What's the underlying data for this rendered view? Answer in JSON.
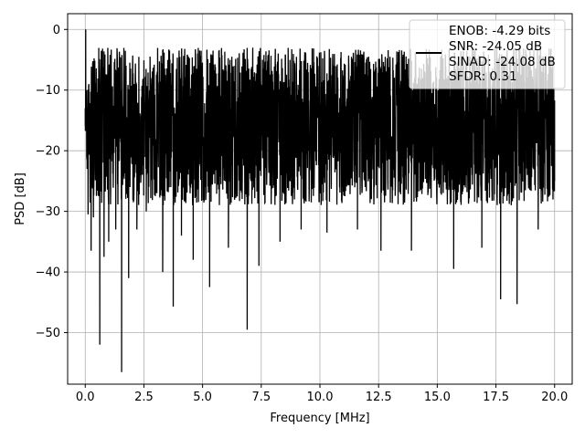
{
  "chart_data": {
    "type": "line",
    "title": "",
    "xlabel": "Frequency [MHz]",
    "ylabel": "PSD [dB]",
    "xlim": [
      -0.75,
      20.75
    ],
    "ylim": [
      -58.5,
      2.6
    ],
    "xticks": [
      0.0,
      2.5,
      5.0,
      7.5,
      10.0,
      12.5,
      15.0,
      17.5,
      20.0
    ],
    "xtick_labels": [
      "0.0",
      "2.5",
      "5.0",
      "7.5",
      "10.0",
      "12.5",
      "15.0",
      "17.5",
      "20.0"
    ],
    "yticks": [
      0,
      -10,
      -20,
      -30,
      -40,
      -50
    ],
    "ytick_labels": [
      "0",
      "−10",
      "−20",
      "−30",
      "−40",
      "−50"
    ],
    "grid": true,
    "series": [
      {
        "line_color": "#000000",
        "points": [
          [
            0.0,
            -13.0
          ],
          [
            0.02,
            0.0
          ],
          [
            0.05,
            -12.5
          ],
          [
            0.08,
            -23.0
          ],
          [
            0.12,
            -30.5
          ],
          [
            0.25,
            -36.5
          ],
          [
            0.35,
            -31.0
          ],
          [
            0.62,
            -52.0
          ],
          [
            0.8,
            -37.5
          ],
          [
            1.0,
            -35.0
          ],
          [
            1.3,
            -33.0
          ],
          [
            1.55,
            -56.5
          ],
          [
            1.85,
            -41.0
          ],
          [
            2.2,
            -33.0
          ],
          [
            2.6,
            -30.0
          ],
          [
            3.3,
            -40.0
          ],
          [
            3.75,
            -45.7
          ],
          [
            4.1,
            -34.0
          ],
          [
            4.6,
            -38.0
          ],
          [
            5.3,
            -42.5
          ],
          [
            6.1,
            -36.0
          ],
          [
            6.9,
            -49.5
          ],
          [
            7.4,
            -39.0
          ],
          [
            8.3,
            -35.0
          ],
          [
            9.2,
            -33.0
          ],
          [
            10.3,
            -33.5
          ],
          [
            11.6,
            -33.0
          ],
          [
            12.6,
            -36.5
          ],
          [
            13.9,
            -36.5
          ],
          [
            15.7,
            -39.5
          ],
          [
            16.9,
            -36.0
          ],
          [
            17.7,
            -44.5
          ],
          [
            18.4,
            -45.3
          ],
          [
            19.3,
            -33.0
          ],
          [
            20.0,
            -25.0
          ]
        ]
      }
    ],
    "legend": {
      "placement": "top-right",
      "entries": [
        "ENOB: -4.29 bits",
        "SNR: -24.05 dB",
        "SINAD: -24.08 dB",
        "SFDR: 0.31"
      ]
    }
  }
}
